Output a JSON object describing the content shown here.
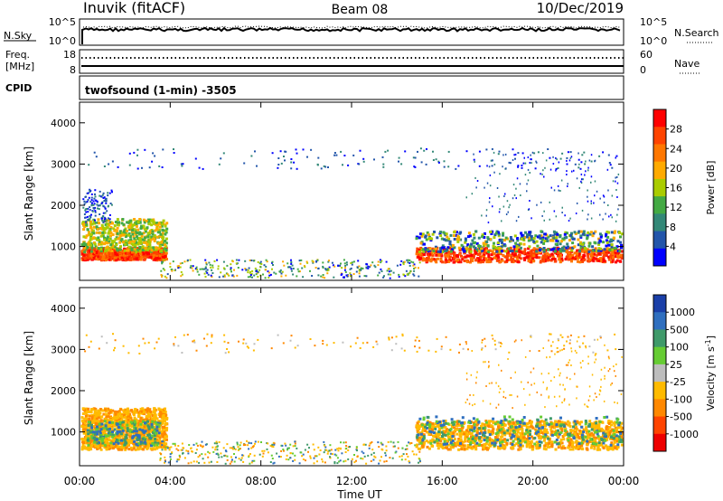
{
  "header": {
    "station": "Inuvik (fitACF)",
    "beam": "Beam 08",
    "date": "10/Dec/2019"
  },
  "top_panels": {
    "nsky": {
      "left_label": "N.Sky",
      "left_ticks": [
        "10^5",
        "10^0"
      ],
      "right_ticks": [
        "10^5",
        "10^0"
      ],
      "right_label": "N.Search"
    },
    "freq": {
      "left_label_1": "Freq.",
      "left_label_2": "[MHz]",
      "left_ticks": [
        "18",
        "8"
      ],
      "right_ticks": [
        "60",
        "0"
      ],
      "right_label": "Nave"
    },
    "cpid": {
      "label": "CPID",
      "text": "twofsound (1-min) -3505"
    }
  },
  "chart_data": [
    {
      "type": "heatmap",
      "title": "Power",
      "ylabel": "Slant Range [km]",
      "xlabel": "Time UT",
      "ylim": [
        180,
        4500
      ],
      "yticks": [
        "4000",
        "3000",
        "2000",
        "1000"
      ],
      "ytick_values": [
        4000,
        3000,
        2000,
        1000
      ],
      "xticks": [
        "00:00",
        "04:00",
        "08:00",
        "12:00",
        "16:00",
        "20:00",
        "00:00"
      ],
      "x_hours": [
        0,
        24
      ],
      "colorbar": {
        "label": "Power [dB]",
        "ticks": [
          "28",
          "24",
          "20",
          "16",
          "12",
          "8",
          "4"
        ],
        "colors": [
          "#ff0000",
          "#ff4400",
          "#ff7700",
          "#ffaa00",
          "#aacc00",
          "#44aa44",
          "#338877",
          "#2255aa",
          "#0000ff"
        ]
      },
      "grid": false
    },
    {
      "type": "heatmap",
      "title": "Velocity",
      "ylabel": "Slant Range [km]",
      "xlabel": "Time UT",
      "ylim": [
        180,
        4500
      ],
      "yticks": [
        "4000",
        "3000",
        "2000",
        "1000"
      ],
      "ytick_values": [
        4000,
        3000,
        2000,
        1000
      ],
      "xticks": [
        "00:00",
        "04:00",
        "08:00",
        "12:00",
        "16:00",
        "20:00",
        "00:00"
      ],
      "x_hours": [
        0,
        24
      ],
      "colorbar": {
        "label": "Velocity [m s",
        "label_sup": "-1",
        "label_end": "]",
        "ticks": [
          "1000",
          "500",
          "100",
          "25",
          "-25",
          "-100",
          "-500",
          "-1000"
        ],
        "colors": [
          "#1a3fa8",
          "#2f6fbf",
          "#3f9a6a",
          "#66cc33",
          "#bdbdbd",
          "#ffbb00",
          "#ff8800",
          "#ff4400",
          "#ee0000"
        ]
      },
      "grid": false
    }
  ],
  "xaxis_label": "Time UT"
}
